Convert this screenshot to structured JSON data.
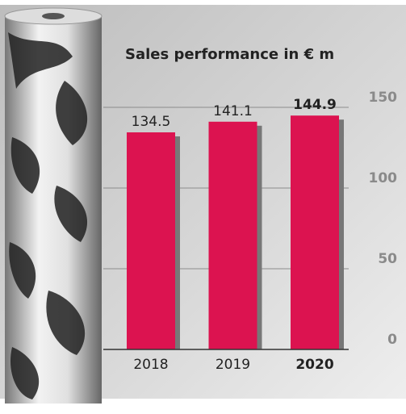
{
  "chart_data": {
    "type": "bar",
    "title": "Sales performance in € m",
    "categories": [
      "2018",
      "2019",
      "2020"
    ],
    "values": [
      134.5,
      141.1,
      144.9
    ],
    "color": "#dc1350",
    "ylim": [
      0,
      150
    ],
    "yticks": [
      0,
      50,
      100,
      150
    ],
    "grid": true
  }
}
